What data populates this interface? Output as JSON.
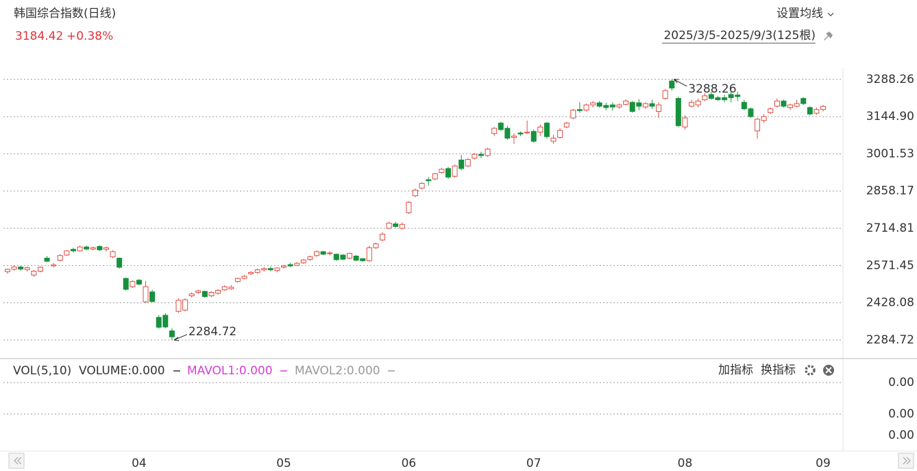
{
  "header": {
    "title": "韩国综合指数(日线)",
    "price": "3184.42",
    "change": "+0.38%",
    "ma_setting": "设置均线",
    "range": "2025/3/5-2025/9/3(125根)"
  },
  "volume_panel": {
    "legend": [
      "VOL(5,10)",
      "VOLUME:0.000",
      "MAVOL1:0.000",
      "MAVOL2:0.000"
    ],
    "buttons": [
      "加指标",
      "换指标"
    ],
    "tick_labels": [
      "0.00",
      "0.00",
      "0.00"
    ]
  },
  "chart_data": {
    "type": "candlestick",
    "categories": [
      null,
      null,
      null,
      null,
      null,
      null,
      null,
      null,
      null,
      null,
      null,
      null,
      null,
      null,
      null,
      null,
      null,
      null,
      null,
      null,
      "04",
      null,
      null,
      null,
      null,
      null,
      null,
      null,
      null,
      null,
      null,
      null,
      null,
      null,
      null,
      null,
      null,
      null,
      null,
      null,
      null,
      null,
      "05",
      null,
      null,
      null,
      null,
      null,
      null,
      null,
      null,
      null,
      null,
      null,
      null,
      null,
      null,
      null,
      null,
      null,
      null,
      "06",
      null,
      null,
      null,
      null,
      null,
      null,
      null,
      null,
      null,
      null,
      null,
      null,
      null,
      null,
      null,
      null,
      null,
      null,
      "07",
      null,
      null,
      null,
      null,
      null,
      null,
      null,
      null,
      null,
      null,
      null,
      null,
      null,
      null,
      null,
      null,
      null,
      null,
      null,
      null,
      null,
      null,
      "08",
      null,
      null,
      null,
      null,
      null,
      null,
      null,
      null,
      null,
      null,
      null,
      null,
      null,
      null,
      null,
      null,
      null,
      null,
      null,
      null,
      "09"
    ],
    "open": [
      2548,
      2557,
      2566,
      2556,
      2535,
      2550,
      2600,
      2570,
      2592,
      2612,
      2634,
      2628,
      2643,
      2635,
      2645,
      2634,
      2605,
      2600,
      2522,
      2490,
      2515,
      2432,
      2470,
      2372,
      2380,
      2320,
      2395,
      2400,
      2455,
      2468,
      2472,
      2455,
      2465,
      2478,
      2482,
      2510,
      2522,
      2540,
      2545,
      2555,
      2560,
      2552,
      2565,
      2575,
      2572,
      2582,
      2595,
      2610,
      2625,
      2618,
      2615,
      2612,
      2600,
      2608,
      2598,
      2590,
      2640,
      2670,
      2715,
      2732,
      2715,
      2775,
      2840,
      2870,
      2902,
      2905,
      2930,
      2945,
      2915,
      2978,
      2955,
      2985,
      3000,
      2995,
      3080,
      3120,
      3100,
      3065,
      3082,
      3082,
      3088,
      3085,
      3120,
      3050,
      3065,
      3105,
      3140,
      3172,
      3170,
      3190,
      3198,
      3188,
      3190,
      3182,
      3192,
      3200,
      3198,
      3182,
      3195,
      3165,
      3215,
      3282,
      3215,
      3105,
      3185,
      3190,
      3210,
      3230,
      3218,
      3218,
      3230,
      3228,
      3200,
      3175,
      3090,
      3130,
      3160,
      3185,
      3205,
      3180,
      3185,
      3215,
      3180,
      3158,
      3172.37
    ],
    "high": [
      2560,
      2572,
      2570,
      2568,
      2555,
      2568,
      2608,
      2582,
      2615,
      2632,
      2640,
      2648,
      2648,
      2645,
      2650,
      2645,
      2630,
      2602,
      2525,
      2515,
      2520,
      2512,
      2478,
      2380,
      2388,
      2330,
      2445,
      2445,
      2468,
      2478,
      2475,
      2472,
      2480,
      2495,
      2496,
      2525,
      2535,
      2550,
      2560,
      2565,
      2568,
      2565,
      2575,
      2582,
      2585,
      2597,
      2610,
      2630,
      2628,
      2626,
      2618,
      2615,
      2622,
      2612,
      2600,
      2648,
      2660,
      2700,
      2740,
      2740,
      2738,
      2820,
      2868,
      2892,
      2912,
      2928,
      2948,
      2952,
      2960,
      2998,
      2985,
      3005,
      3010,
      3025,
      3105,
      3125,
      3110,
      3080,
      3088,
      3130,
      3095,
      3115,
      3125,
      3075,
      3100,
      3125,
      3175,
      3200,
      3195,
      3205,
      3205,
      3198,
      3200,
      3195,
      3212,
      3205,
      3212,
      3200,
      3210,
      3200,
      3250,
      3288.26,
      3222,
      3150,
      3210,
      3215,
      3235,
      3240,
      3225,
      3230,
      3240,
      3240,
      3210,
      3180,
      3140,
      3155,
      3180,
      3215,
      3210,
      3195,
      3210,
      3220,
      3185,
      3180,
      3190
    ],
    "low": [
      2540,
      2552,
      2552,
      2548,
      2528,
      2545,
      2585,
      2565,
      2588,
      2608,
      2622,
      2625,
      2630,
      2630,
      2628,
      2625,
      2600,
      2560,
      2475,
      2485,
      2495,
      2428,
      2430,
      2328,
      2330,
      2284.72,
      2390,
      2395,
      2448,
      2462,
      2448,
      2450,
      2460,
      2474,
      2478,
      2505,
      2518,
      2535,
      2540,
      2548,
      2550,
      2545,
      2560,
      2566,
      2570,
      2578,
      2590,
      2605,
      2612,
      2610,
      2590,
      2592,
      2596,
      2588,
      2586,
      2586,
      2635,
      2665,
      2712,
      2718,
      2710,
      2770,
      2835,
      2865,
      2880,
      2900,
      2925,
      2905,
      2910,
      2938,
      2950,
      2980,
      2985,
      2990,
      3070,
      3090,
      3055,
      3040,
      3070,
      3078,
      3045,
      3070,
      3060,
      3040,
      3060,
      3100,
      3135,
      3160,
      3165,
      3180,
      3180,
      3170,
      3168,
      3175,
      3188,
      3160,
      3170,
      3175,
      3175,
      3140,
      3210,
      3245,
      3105,
      3095,
      3180,
      3180,
      3205,
      3210,
      3205,
      3200,
      3200,
      3205,
      3170,
      3140,
      3060,
      3120,
      3155,
      3180,
      3180,
      3170,
      3180,
      3190,
      3150,
      3152,
      3165
    ],
    "close": [
      2557,
      2566,
      2558,
      2563,
      2550,
      2565,
      2588,
      2574,
      2610,
      2628,
      2628,
      2643,
      2635,
      2640,
      2632,
      2640,
      2625,
      2565,
      2480,
      2510,
      2500,
      2490,
      2433,
      2334,
      2335,
      2297,
      2438,
      2440,
      2462,
      2474,
      2452,
      2468,
      2476,
      2490,
      2488,
      2522,
      2530,
      2545,
      2555,
      2560,
      2555,
      2562,
      2570,
      2570,
      2580,
      2593,
      2605,
      2625,
      2615,
      2620,
      2594,
      2596,
      2618,
      2592,
      2590,
      2640,
      2655,
      2692,
      2735,
      2722,
      2730,
      2815,
      2862,
      2888,
      2898,
      2925,
      2942,
      2912,
      2955,
      2945,
      2980,
      3000,
      2995,
      3020,
      3100,
      3095,
      3062,
      3070,
      3078,
      3085,
      3050,
      3105,
      3068,
      3062,
      3092,
      3120,
      3170,
      3168,
      3190,
      3198,
      3185,
      3180,
      3182,
      3190,
      3205,
      3165,
      3185,
      3195,
      3185,
      3190,
      3245,
      3255,
      3110,
      3140,
      3200,
      3205,
      3225,
      3215,
      3210,
      3210,
      3218,
      3222,
      3175,
      3145,
      3135,
      3145,
      3175,
      3205,
      3185,
      3190,
      3195,
      3195,
      3155,
      3172.37,
      3184.42
    ],
    "up_color": "#e04a3f",
    "down_color": "#17913d",
    "ylim": [
      2216,
      3330
    ],
    "yticks": [
      3288.26,
      {
        "value": 3144.9,
        "label": "3144.90"
      },
      3001.53,
      2858.17,
      2714.81,
      2571.45,
      2428.08,
      2284.72
    ],
    "grid": true,
    "max_label": 3288.26,
    "min_label": 2284.72
  }
}
